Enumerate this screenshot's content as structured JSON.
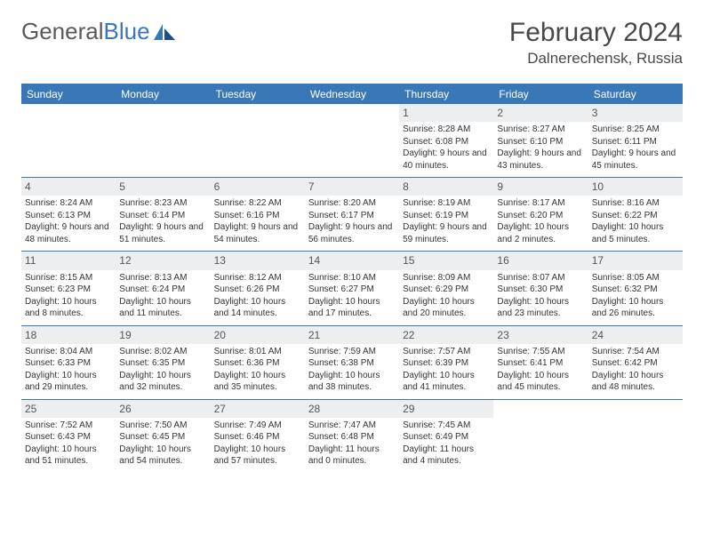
{
  "logo": {
    "word1": "General",
    "word2": "Blue"
  },
  "header": {
    "title": "February 2024",
    "subtitle": "Dalnerechensk, Russia"
  },
  "colors": {
    "header_bar": "#3a77b7",
    "row_divider": "#3a77b7",
    "day_num_bg": "#eceef0",
    "text": "#333333",
    "title_text": "#484848"
  },
  "days": [
    "Sunday",
    "Monday",
    "Tuesday",
    "Wednesday",
    "Thursday",
    "Friday",
    "Saturday"
  ],
  "weeks": [
    [
      {
        "n": "",
        "sr": "",
        "ss": "",
        "dl": ""
      },
      {
        "n": "",
        "sr": "",
        "ss": "",
        "dl": ""
      },
      {
        "n": "",
        "sr": "",
        "ss": "",
        "dl": ""
      },
      {
        "n": "",
        "sr": "",
        "ss": "",
        "dl": ""
      },
      {
        "n": "1",
        "sr": "Sunrise: 8:28 AM",
        "ss": "Sunset: 6:08 PM",
        "dl": "Daylight: 9 hours and 40 minutes."
      },
      {
        "n": "2",
        "sr": "Sunrise: 8:27 AM",
        "ss": "Sunset: 6:10 PM",
        "dl": "Daylight: 9 hours and 43 minutes."
      },
      {
        "n": "3",
        "sr": "Sunrise: 8:25 AM",
        "ss": "Sunset: 6:11 PM",
        "dl": "Daylight: 9 hours and 45 minutes."
      }
    ],
    [
      {
        "n": "4",
        "sr": "Sunrise: 8:24 AM",
        "ss": "Sunset: 6:13 PM",
        "dl": "Daylight: 9 hours and 48 minutes."
      },
      {
        "n": "5",
        "sr": "Sunrise: 8:23 AM",
        "ss": "Sunset: 6:14 PM",
        "dl": "Daylight: 9 hours and 51 minutes."
      },
      {
        "n": "6",
        "sr": "Sunrise: 8:22 AM",
        "ss": "Sunset: 6:16 PM",
        "dl": "Daylight: 9 hours and 54 minutes."
      },
      {
        "n": "7",
        "sr": "Sunrise: 8:20 AM",
        "ss": "Sunset: 6:17 PM",
        "dl": "Daylight: 9 hours and 56 minutes."
      },
      {
        "n": "8",
        "sr": "Sunrise: 8:19 AM",
        "ss": "Sunset: 6:19 PM",
        "dl": "Daylight: 9 hours and 59 minutes."
      },
      {
        "n": "9",
        "sr": "Sunrise: 8:17 AM",
        "ss": "Sunset: 6:20 PM",
        "dl": "Daylight: 10 hours and 2 minutes."
      },
      {
        "n": "10",
        "sr": "Sunrise: 8:16 AM",
        "ss": "Sunset: 6:22 PM",
        "dl": "Daylight: 10 hours and 5 minutes."
      }
    ],
    [
      {
        "n": "11",
        "sr": "Sunrise: 8:15 AM",
        "ss": "Sunset: 6:23 PM",
        "dl": "Daylight: 10 hours and 8 minutes."
      },
      {
        "n": "12",
        "sr": "Sunrise: 8:13 AM",
        "ss": "Sunset: 6:24 PM",
        "dl": "Daylight: 10 hours and 11 minutes."
      },
      {
        "n": "13",
        "sr": "Sunrise: 8:12 AM",
        "ss": "Sunset: 6:26 PM",
        "dl": "Daylight: 10 hours and 14 minutes."
      },
      {
        "n": "14",
        "sr": "Sunrise: 8:10 AM",
        "ss": "Sunset: 6:27 PM",
        "dl": "Daylight: 10 hours and 17 minutes."
      },
      {
        "n": "15",
        "sr": "Sunrise: 8:09 AM",
        "ss": "Sunset: 6:29 PM",
        "dl": "Daylight: 10 hours and 20 minutes."
      },
      {
        "n": "16",
        "sr": "Sunrise: 8:07 AM",
        "ss": "Sunset: 6:30 PM",
        "dl": "Daylight: 10 hours and 23 minutes."
      },
      {
        "n": "17",
        "sr": "Sunrise: 8:05 AM",
        "ss": "Sunset: 6:32 PM",
        "dl": "Daylight: 10 hours and 26 minutes."
      }
    ],
    [
      {
        "n": "18",
        "sr": "Sunrise: 8:04 AM",
        "ss": "Sunset: 6:33 PM",
        "dl": "Daylight: 10 hours and 29 minutes."
      },
      {
        "n": "19",
        "sr": "Sunrise: 8:02 AM",
        "ss": "Sunset: 6:35 PM",
        "dl": "Daylight: 10 hours and 32 minutes."
      },
      {
        "n": "20",
        "sr": "Sunrise: 8:01 AM",
        "ss": "Sunset: 6:36 PM",
        "dl": "Daylight: 10 hours and 35 minutes."
      },
      {
        "n": "21",
        "sr": "Sunrise: 7:59 AM",
        "ss": "Sunset: 6:38 PM",
        "dl": "Daylight: 10 hours and 38 minutes."
      },
      {
        "n": "22",
        "sr": "Sunrise: 7:57 AM",
        "ss": "Sunset: 6:39 PM",
        "dl": "Daylight: 10 hours and 41 minutes."
      },
      {
        "n": "23",
        "sr": "Sunrise: 7:55 AM",
        "ss": "Sunset: 6:41 PM",
        "dl": "Daylight: 10 hours and 45 minutes."
      },
      {
        "n": "24",
        "sr": "Sunrise: 7:54 AM",
        "ss": "Sunset: 6:42 PM",
        "dl": "Daylight: 10 hours and 48 minutes."
      }
    ],
    [
      {
        "n": "25",
        "sr": "Sunrise: 7:52 AM",
        "ss": "Sunset: 6:43 PM",
        "dl": "Daylight: 10 hours and 51 minutes."
      },
      {
        "n": "26",
        "sr": "Sunrise: 7:50 AM",
        "ss": "Sunset: 6:45 PM",
        "dl": "Daylight: 10 hours and 54 minutes."
      },
      {
        "n": "27",
        "sr": "Sunrise: 7:49 AM",
        "ss": "Sunset: 6:46 PM",
        "dl": "Daylight: 10 hours and 57 minutes."
      },
      {
        "n": "28",
        "sr": "Sunrise: 7:47 AM",
        "ss": "Sunset: 6:48 PM",
        "dl": "Daylight: 11 hours and 0 minutes."
      },
      {
        "n": "29",
        "sr": "Sunrise: 7:45 AM",
        "ss": "Sunset: 6:49 PM",
        "dl": "Daylight: 11 hours and 4 minutes."
      },
      {
        "n": "",
        "sr": "",
        "ss": "",
        "dl": ""
      },
      {
        "n": "",
        "sr": "",
        "ss": "",
        "dl": ""
      }
    ]
  ]
}
